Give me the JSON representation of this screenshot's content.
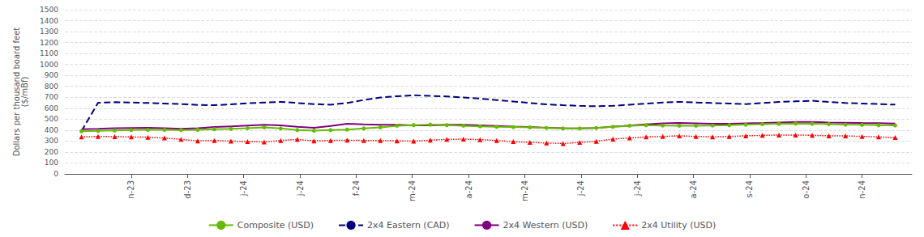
{
  "chart_data": {
    "type": "line",
    "ylabel": "Dollars per thousand board feet\n($/mBf)",
    "x": [
      0,
      1,
      2,
      3,
      4,
      5,
      6,
      7,
      8,
      9,
      10,
      11,
      12,
      13,
      14,
      15,
      16,
      17,
      18,
      19,
      20,
      21,
      22,
      23,
      24,
      25,
      26,
      27,
      28,
      29,
      30,
      31,
      32,
      33,
      34,
      35,
      36,
      37,
      38,
      39,
      40,
      41,
      42,
      43,
      44,
      45,
      46,
      47,
      48,
      49
    ],
    "xlim": [
      -1,
      50
    ],
    "xticks": [
      {
        "value": 3,
        "label": "n-23"
      },
      {
        "value": 6.384615384615385,
        "label": "d-23"
      },
      {
        "value": 9.76923076923077,
        "label": "j-24"
      },
      {
        "value": 13.153846153846153,
        "label": "j-24"
      },
      {
        "value": 16.538461538461537,
        "label": "f-24"
      },
      {
        "value": 19.923076923076923,
        "label": "m-24"
      },
      {
        "value": 23.307692307692307,
        "label": "a-24"
      },
      {
        "value": 26.692307692307693,
        "label": "m-24"
      },
      {
        "value": 30.076923076923077,
        "label": "j-24"
      },
      {
        "value": 33.46153846153846,
        "label": "j-24"
      },
      {
        "value": 36.84615384615385,
        "label": "a-24"
      },
      {
        "value": 40.23076923076923,
        "label": "s-24"
      },
      {
        "value": 43.61538461538461,
        "label": "o-24"
      },
      {
        "value": 47,
        "label": "n-24"
      }
    ],
    "ylim": [
      0,
      1500
    ],
    "yticks": [
      0,
      100,
      200,
      300,
      400,
      500,
      600,
      700,
      800,
      900,
      1000,
      1100,
      1200,
      1300,
      1400,
      1500
    ],
    "grid": true,
    "legend": "bottom",
    "series": [
      {
        "name": "Composite (USD)",
        "color": "#66bb00",
        "line_style": "solid",
        "marker": "circle",
        "values": [
          390,
          393,
          397,
          400,
          403,
          402,
          400,
          403,
          408,
          412,
          418,
          425,
          415,
          400,
          395,
          400,
          405,
          415,
          425,
          440,
          445,
          450,
          445,
          440,
          435,
          430,
          428,
          425,
          420,
          415,
          415,
          420,
          430,
          440,
          445,
          442,
          440,
          440,
          442,
          445,
          450,
          455,
          458,
          460,
          458,
          455,
          450,
          448,
          445,
          443
        ]
      },
      {
        "name": "2x4 Eastern (CAD)",
        "color": "#000080",
        "line_style": "dashed",
        "marker": "none",
        "values": [
          390,
          650,
          655,
          652,
          648,
          643,
          638,
          630,
          628,
          635,
          645,
          652,
          658,
          648,
          638,
          632,
          648,
          675,
          698,
          710,
          718,
          713,
          708,
          698,
          688,
          675,
          662,
          648,
          635,
          628,
          622,
          618,
          622,
          632,
          642,
          652,
          658,
          653,
          648,
          643,
          638,
          648,
          658,
          663,
          668,
          658,
          648,
          643,
          638,
          633
        ]
      },
      {
        "name": "2x4 Western (USD)",
        "color": "#800080",
        "line_style": "solid",
        "marker": "none",
        "values": [
          408,
          412,
          418,
          420,
          422,
          418,
          412,
          418,
          428,
          435,
          442,
          448,
          443,
          430,
          422,
          438,
          458,
          452,
          448,
          448,
          443,
          443,
          448,
          448,
          443,
          438,
          432,
          428,
          422,
          418,
          415,
          420,
          432,
          442,
          452,
          462,
          465,
          462,
          458,
          458,
          462,
          465,
          470,
          475,
          475,
          470,
          468,
          465,
          463,
          460
        ]
      },
      {
        "name": "2x4 Utility (USD)",
        "color": "#ff0000",
        "line_style": "dotted",
        "marker": "triangle",
        "values": [
          338,
          342,
          340,
          338,
          335,
          328,
          315,
          302,
          305,
          300,
          295,
          292,
          305,
          315,
          302,
          305,
          308,
          305,
          305,
          302,
          300,
          308,
          315,
          318,
          313,
          305,
          295,
          288,
          282,
          278,
          288,
          298,
          318,
          328,
          338,
          342,
          348,
          342,
          338,
          342,
          348,
          352,
          355,
          355,
          353,
          348,
          348,
          342,
          338,
          332
        ]
      }
    ]
  }
}
